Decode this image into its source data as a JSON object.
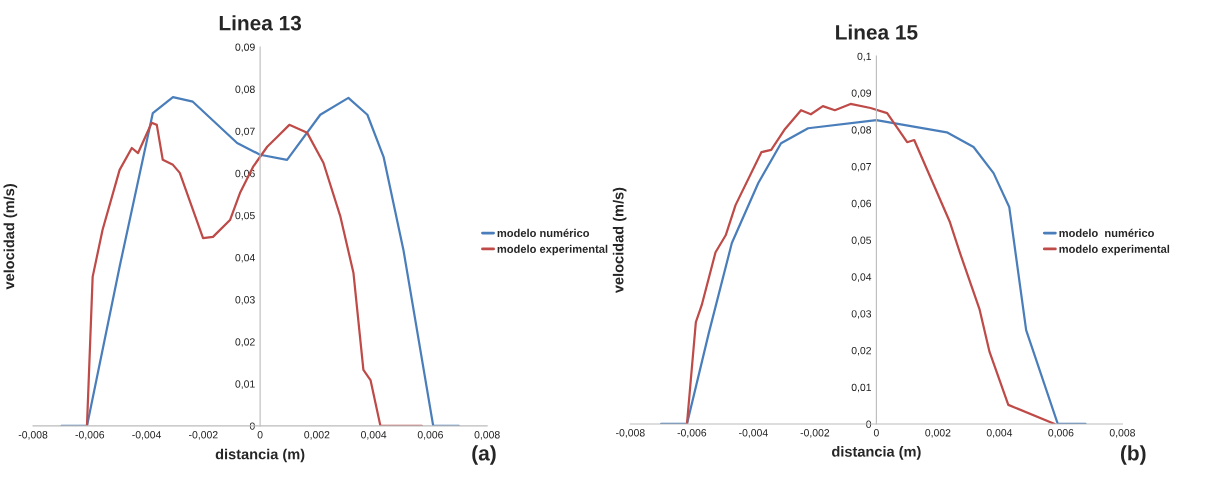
{
  "chart_data": [
    {
      "type": "line",
      "title": "Linea 13",
      "xlabel": "distancia (m)",
      "ylabel": "velocidad (m/s)",
      "annotations": [
        "(a)"
      ],
      "xlim": [
        -0.008,
        0.008
      ],
      "ylim": [
        0,
        0.09
      ],
      "xticks": [
        {
          "value": -0.008,
          "label": "-0,008"
        },
        {
          "value": -0.006,
          "label": "-0,006"
        },
        {
          "value": -0.004,
          "label": "-0,004"
        },
        {
          "value": -0.002,
          "label": "-0,002"
        },
        0,
        {
          "value": 0.002,
          "label": "0,002"
        },
        {
          "value": 0.004,
          "label": "0,004"
        },
        {
          "value": 0.006,
          "label": "0,006"
        },
        {
          "value": 0.008,
          "label": "0,008"
        }
      ],
      "yticks": [
        0,
        {
          "value": 0.01,
          "label": "0,01"
        },
        {
          "value": 0.02,
          "label": "0,02"
        },
        {
          "value": 0.03,
          "label": "0,03"
        },
        {
          "value": 0.04,
          "label": "0,04"
        },
        {
          "value": 0.05,
          "label": "0,05"
        },
        {
          "value": 0.06,
          "label": "0,06"
        },
        {
          "value": 0.07,
          "label": "0,07"
        },
        {
          "value": 0.08,
          "label": "0,08"
        },
        {
          "value": 0.09,
          "label": "0,09"
        }
      ],
      "grid": false,
      "legend": "right",
      "marker": "none",
      "line_style": "solid",
      "series": [
        {
          "name": "modelo numérico",
          "color": "#4a7ebb",
          "x": [
            -0.007,
            -0.0061,
            -0.00495,
            -0.00378,
            -0.00307,
            -0.00237,
            -0.00081,
            0,
            0.00095,
            0.00212,
            0.00311,
            0.00378,
            0.00435,
            0.00505,
            0.0061,
            0.007
          ],
          "values": [
            0,
            0,
            0.0378,
            0.0743,
            0.0781,
            0.077,
            0.0672,
            0.0644,
            0.0632,
            0.0739,
            0.0779,
            0.0739,
            0.0639,
            0.0418,
            0,
            0
          ]
        },
        {
          "name": "modelo experimental",
          "color": "#be4b48",
          "x": [
            -0.0061,
            -0.0059,
            -0.00555,
            -0.00495,
            -0.00452,
            -0.0043,
            -0.00382,
            -0.00364,
            -0.00343,
            -0.00307,
            -0.00283,
            -0.00201,
            -0.00166,
            -0.00106,
            -0.00071,
            -0.00025,
            0.00025,
            0.0006,
            0.00103,
            0.00166,
            0.00223,
            0.00283,
            0.00329,
            0.00364,
            0.00389,
            0.00424,
            0.0057
          ],
          "values": [
            0,
            0.0354,
            0.0466,
            0.0608,
            0.066,
            0.0648,
            0.072,
            0.0715,
            0.0632,
            0.062,
            0.0601,
            0.0446,
            0.0449,
            0.0489,
            0.0553,
            0.0615,
            0.0663,
            0.0686,
            0.0715,
            0.0696,
            0.0625,
            0.0497,
            0.0363,
            0.0133,
            0.0109,
            0,
            0
          ]
        }
      ]
    },
    {
      "type": "line",
      "title": "Linea 15",
      "xlabel": "distancia (m)",
      "ylabel": "velocidad (m/s)",
      "annotations": [
        "(b)"
      ],
      "xlim": [
        -0.008,
        0.008
      ],
      "ylim": [
        0,
        0.1
      ],
      "xticks": [
        {
          "value": -0.008,
          "label": "-0,008"
        },
        {
          "value": -0.006,
          "label": "-0,006"
        },
        {
          "value": -0.004,
          "label": "-0,004"
        },
        {
          "value": -0.002,
          "label": "-0,002"
        },
        0,
        {
          "value": 0.002,
          "label": "0,002"
        },
        {
          "value": 0.004,
          "label": "0,004"
        },
        {
          "value": 0.006,
          "label": "0,006"
        },
        {
          "value": 0.008,
          "label": "0,008"
        }
      ],
      "yticks": [
        0,
        {
          "value": 0.01,
          "label": "0,01"
        },
        {
          "value": 0.02,
          "label": "0,02"
        },
        {
          "value": 0.03,
          "label": "0,03"
        },
        {
          "value": 0.04,
          "label": "0,04"
        },
        {
          "value": 0.05,
          "label": "0,05"
        },
        {
          "value": 0.06,
          "label": "0,06"
        },
        {
          "value": 0.07,
          "label": "0,07"
        },
        {
          "value": 0.08,
          "label": "0,08"
        },
        {
          "value": 0.09,
          "label": "0,09"
        },
        {
          "value": 0.1,
          "label": "0,1"
        }
      ],
      "grid": false,
      "legend": "right",
      "marker": "none",
      "line_style": "solid",
      "series": [
        {
          "name": "modelo  numérico",
          "color": "#4a7ebb",
          "x": [
            -0.007,
            -0.00616,
            -0.00545,
            -0.0047,
            -0.00384,
            -0.0031,
            -0.00222,
            0,
            0.00229,
            0.00316,
            0.00381,
            0.00432,
            0.00487,
            0.0059,
            0.0068
          ],
          "values": [
            0,
            0,
            0.0247,
            0.0492,
            0.0655,
            0.0763,
            0.0804,
            0.0826,
            0.0793,
            0.0753,
            0.0682,
            0.059,
            0.0255,
            0,
            0
          ]
        },
        {
          "name": "modelo experimental",
          "color": "#be4b48",
          "x": [
            -0.00616,
            -0.00587,
            -0.00568,
            -0.00523,
            -0.0049,
            -0.00458,
            -0.00374,
            -0.00342,
            -0.00297,
            -0.00245,
            -0.00213,
            -0.00174,
            -0.00135,
            -0.00084,
            -0.00019,
            0.00035,
            0.001,
            0.00123,
            0.00187,
            0.00239,
            0.00271,
            0.00335,
            0.00368,
            0.00429,
            0.0058
          ],
          "values": [
            0,
            0.0277,
            0.0323,
            0.0467,
            0.0513,
            0.0595,
            0.0739,
            0.0745,
            0.0802,
            0.0853,
            0.0842,
            0.0864,
            0.0853,
            0.087,
            0.0859,
            0.0845,
            0.0766,
            0.0772,
            0.0649,
            0.0549,
            0.0467,
            0.0313,
            0.0196,
            0.0052,
            0
          ]
        }
      ]
    }
  ]
}
